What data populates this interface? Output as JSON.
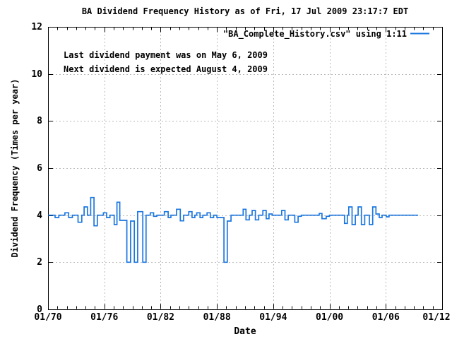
{
  "annotations": [
    "Last dividend payment was on May 6, 2009",
    "Next dividend is expected August 4, 2009"
  ],
  "legend": {
    "label": "\"BA_Complete_History.csv\" using 1:11",
    "position": "top-right-inside"
  },
  "colors": {
    "line": "#1a76e0",
    "grid": "#b9b9b9",
    "axis": "#000000",
    "text": "#000000",
    "background": "#ffffff"
  },
  "chart_data": {
    "type": "line",
    "style": "steps",
    "title": "BA Dividend Frequency History as of Fri, 17 Jul 2009 23:17:7 EDT",
    "xlabel": "Date",
    "ylabel": "Dividend Frequency (Times per year)",
    "xlim_years": [
      1970,
      2012
    ],
    "ylim": [
      0,
      12
    ],
    "x_tick_years": [
      1970,
      1976,
      1982,
      1988,
      1994,
      2000,
      2006,
      2012
    ],
    "x_tick_labels": [
      "01/70",
      "01/76",
      "01/82",
      "01/88",
      "01/94",
      "01/00",
      "01/06",
      "01/12"
    ],
    "x_minor_tick_step_years": 1,
    "y_ticks": [
      0,
      2,
      4,
      6,
      8,
      10,
      12
    ],
    "grid": true,
    "x_grid_years": [
      1976,
      1982,
      1988,
      1994,
      2000,
      2006
    ],
    "y_grid_values": [
      2,
      4,
      6,
      8,
      10
    ],
    "legend_position": "top-right-inside",
    "series": [
      {
        "name": "\"BA_Complete_History.csv\" using 1:11",
        "color": "#1a76e0",
        "end_year": 2009.45,
        "steps": [
          [
            1970.0,
            4.0
          ],
          [
            1970.75,
            3.9
          ],
          [
            1971.15,
            4.0
          ],
          [
            1971.8,
            4.1
          ],
          [
            1972.2,
            3.9
          ],
          [
            1972.6,
            4.0
          ],
          [
            1973.2,
            3.7
          ],
          [
            1973.6,
            4.0
          ],
          [
            1973.85,
            4.35
          ],
          [
            1974.2,
            4.0
          ],
          [
            1974.55,
            4.75
          ],
          [
            1974.9,
            3.55
          ],
          [
            1975.25,
            4.0
          ],
          [
            1975.9,
            4.1
          ],
          [
            1976.25,
            3.9
          ],
          [
            1976.6,
            4.0
          ],
          [
            1977.05,
            3.6
          ],
          [
            1977.35,
            4.55
          ],
          [
            1977.65,
            3.78
          ],
          [
            1978.4,
            2.0
          ],
          [
            1978.8,
            3.75
          ],
          [
            1979.2,
            2.0
          ],
          [
            1979.55,
            4.15
          ],
          [
            1980.1,
            2.0
          ],
          [
            1980.45,
            4.0
          ],
          [
            1980.9,
            4.1
          ],
          [
            1981.25,
            3.95
          ],
          [
            1981.6,
            4.0
          ],
          [
            1982.4,
            4.15
          ],
          [
            1982.8,
            3.9
          ],
          [
            1983.1,
            4.0
          ],
          [
            1983.7,
            4.25
          ],
          [
            1984.1,
            3.76
          ],
          [
            1984.45,
            4.0
          ],
          [
            1985.0,
            4.15
          ],
          [
            1985.35,
            3.9
          ],
          [
            1985.65,
            4.0
          ],
          [
            1985.85,
            4.1
          ],
          [
            1986.2,
            3.9
          ],
          [
            1986.5,
            4.0
          ],
          [
            1986.95,
            4.1
          ],
          [
            1987.3,
            3.9
          ],
          [
            1987.65,
            4.0
          ],
          [
            1988.0,
            3.9
          ],
          [
            1988.75,
            2.0
          ],
          [
            1989.1,
            3.75
          ],
          [
            1989.5,
            4.0
          ],
          [
            1990.8,
            4.25
          ],
          [
            1991.1,
            3.8
          ],
          [
            1991.45,
            4.0
          ],
          [
            1991.75,
            4.2
          ],
          [
            1992.1,
            3.8
          ],
          [
            1992.45,
            4.0
          ],
          [
            1992.9,
            4.2
          ],
          [
            1993.25,
            3.85
          ],
          [
            1993.55,
            4.05
          ],
          [
            1993.9,
            4.0
          ],
          [
            1994.9,
            4.2
          ],
          [
            1995.25,
            3.8
          ],
          [
            1995.6,
            4.0
          ],
          [
            1996.3,
            3.7
          ],
          [
            1996.65,
            3.95
          ],
          [
            1997.0,
            4.0
          ],
          [
            1998.9,
            4.07
          ],
          [
            1999.2,
            3.85
          ],
          [
            1999.65,
            3.95
          ],
          [
            2000.0,
            4.0
          ],
          [
            2001.6,
            3.65
          ],
          [
            2001.9,
            4.0
          ],
          [
            2002.05,
            4.35
          ],
          [
            2002.4,
            3.6
          ],
          [
            2002.75,
            4.0
          ],
          [
            2003.05,
            4.35
          ],
          [
            2003.4,
            3.6
          ],
          [
            2003.75,
            4.0
          ],
          [
            2004.25,
            3.6
          ],
          [
            2004.6,
            4.35
          ],
          [
            2004.95,
            4.05
          ],
          [
            2005.3,
            3.9
          ],
          [
            2005.6,
            4.0
          ],
          [
            2006.05,
            3.93
          ],
          [
            2006.35,
            4.0
          ]
        ]
      }
    ]
  }
}
